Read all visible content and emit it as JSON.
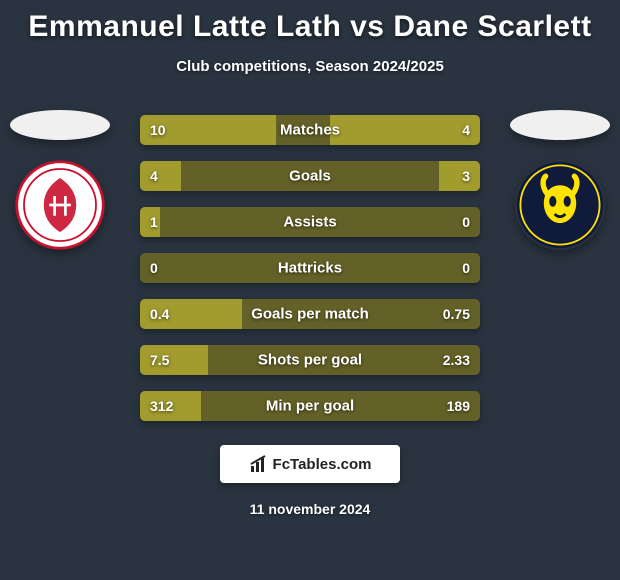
{
  "title": "Emmanuel Latte Lath vs Dane Scarlett",
  "subtitle": "Club competitions, Season 2024/2025",
  "date": "11 november 2024",
  "footer_brand": "FcTables.com",
  "colors": {
    "background": "#2a3440",
    "bar_base": "#636127",
    "bar_fill": "#a29b2e",
    "text": "#ffffff"
  },
  "left_team": {
    "name": "Middlesbrough",
    "crest_colors": {
      "bg": "#ffffff",
      "accent": "#c8102e"
    }
  },
  "right_team": {
    "name": "Oxford United",
    "crest_colors": {
      "bg": "#101b3b",
      "accent": "#ffe400"
    }
  },
  "bars": [
    {
      "label": "Matches",
      "left": "10",
      "right": "4",
      "left_pct": 40,
      "right_pct": 44
    },
    {
      "label": "Goals",
      "left": "4",
      "right": "3",
      "left_pct": 12,
      "right_pct": 12
    },
    {
      "label": "Assists",
      "left": "1",
      "right": "0",
      "left_pct": 6,
      "right_pct": 0
    },
    {
      "label": "Hattricks",
      "left": "0",
      "right": "0",
      "left_pct": 0,
      "right_pct": 0
    },
    {
      "label": "Goals per match",
      "left": "0.4",
      "right": "0.75",
      "left_pct": 30,
      "right_pct": 0
    },
    {
      "label": "Shots per goal",
      "left": "7.5",
      "right": "2.33",
      "left_pct": 20,
      "right_pct": 0
    },
    {
      "label": "Min per goal",
      "left": "312",
      "right": "189",
      "left_pct": 18,
      "right_pct": 0
    }
  ]
}
